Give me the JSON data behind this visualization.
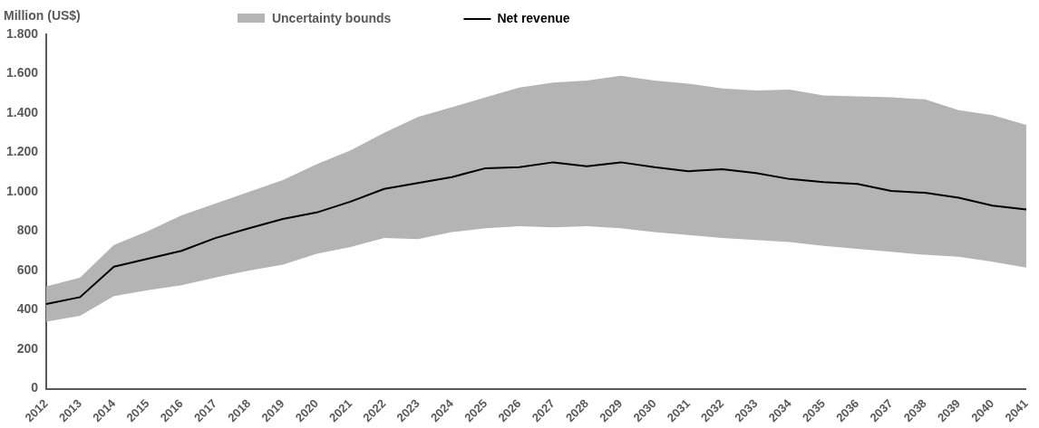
{
  "chart_data": {
    "type": "line",
    "ylabel": "Million (US$)",
    "categories": [
      "2012",
      "2013",
      "2014",
      "2015",
      "2016",
      "2017",
      "2018",
      "2019",
      "2020",
      "2021",
      "2022",
      "2023",
      "2024",
      "2025",
      "2026",
      "2027",
      "2028",
      "2029",
      "2030",
      "2031",
      "2032",
      "2033",
      "2034",
      "2035",
      "2036",
      "2037",
      "2038",
      "2039",
      "2040",
      "2041"
    ],
    "series": [
      {
        "name": "Net revenue",
        "color": "#000000",
        "values": [
          430,
          465,
          620,
          660,
          700,
          765,
          815,
          862,
          895,
          950,
          1015,
          1045,
          1075,
          1120,
          1125,
          1150,
          1130,
          1150,
          1125,
          1105,
          1115,
          1095,
          1065,
          1050,
          1040,
          1005,
          995,
          970,
          930,
          910
        ],
        "lower": [
          340,
          370,
          470,
          500,
          525,
          565,
          600,
          630,
          685,
          720,
          765,
          760,
          795,
          815,
          825,
          820,
          825,
          815,
          795,
          780,
          765,
          755,
          745,
          725,
          710,
          695,
          680,
          670,
          645,
          615
        ],
        "upper": [
          520,
          565,
          730,
          800,
          880,
          940,
          1000,
          1060,
          1140,
          1210,
          1300,
          1380,
          1430,
          1480,
          1530,
          1555,
          1565,
          1590,
          1565,
          1550,
          1525,
          1515,
          1520,
          1490,
          1485,
          1480,
          1470,
          1415,
          1390,
          1340
        ]
      }
    ],
    "annotations": [
      "Uncertainty bounds"
    ],
    "ylim": [
      0,
      1800
    ],
    "yticks": [
      0,
      200,
      400,
      600,
      800,
      {
        "value": 1000,
        "label": "1.000"
      },
      {
        "value": 1200,
        "label": "1.200"
      },
      {
        "value": 1400,
        "label": "1.400"
      },
      {
        "value": 1600,
        "label": "1.600"
      },
      {
        "value": 1800,
        "label": "1.800"
      }
    ],
    "grid": false,
    "legend": "top",
    "marker": "none",
    "line_style": "solid"
  }
}
